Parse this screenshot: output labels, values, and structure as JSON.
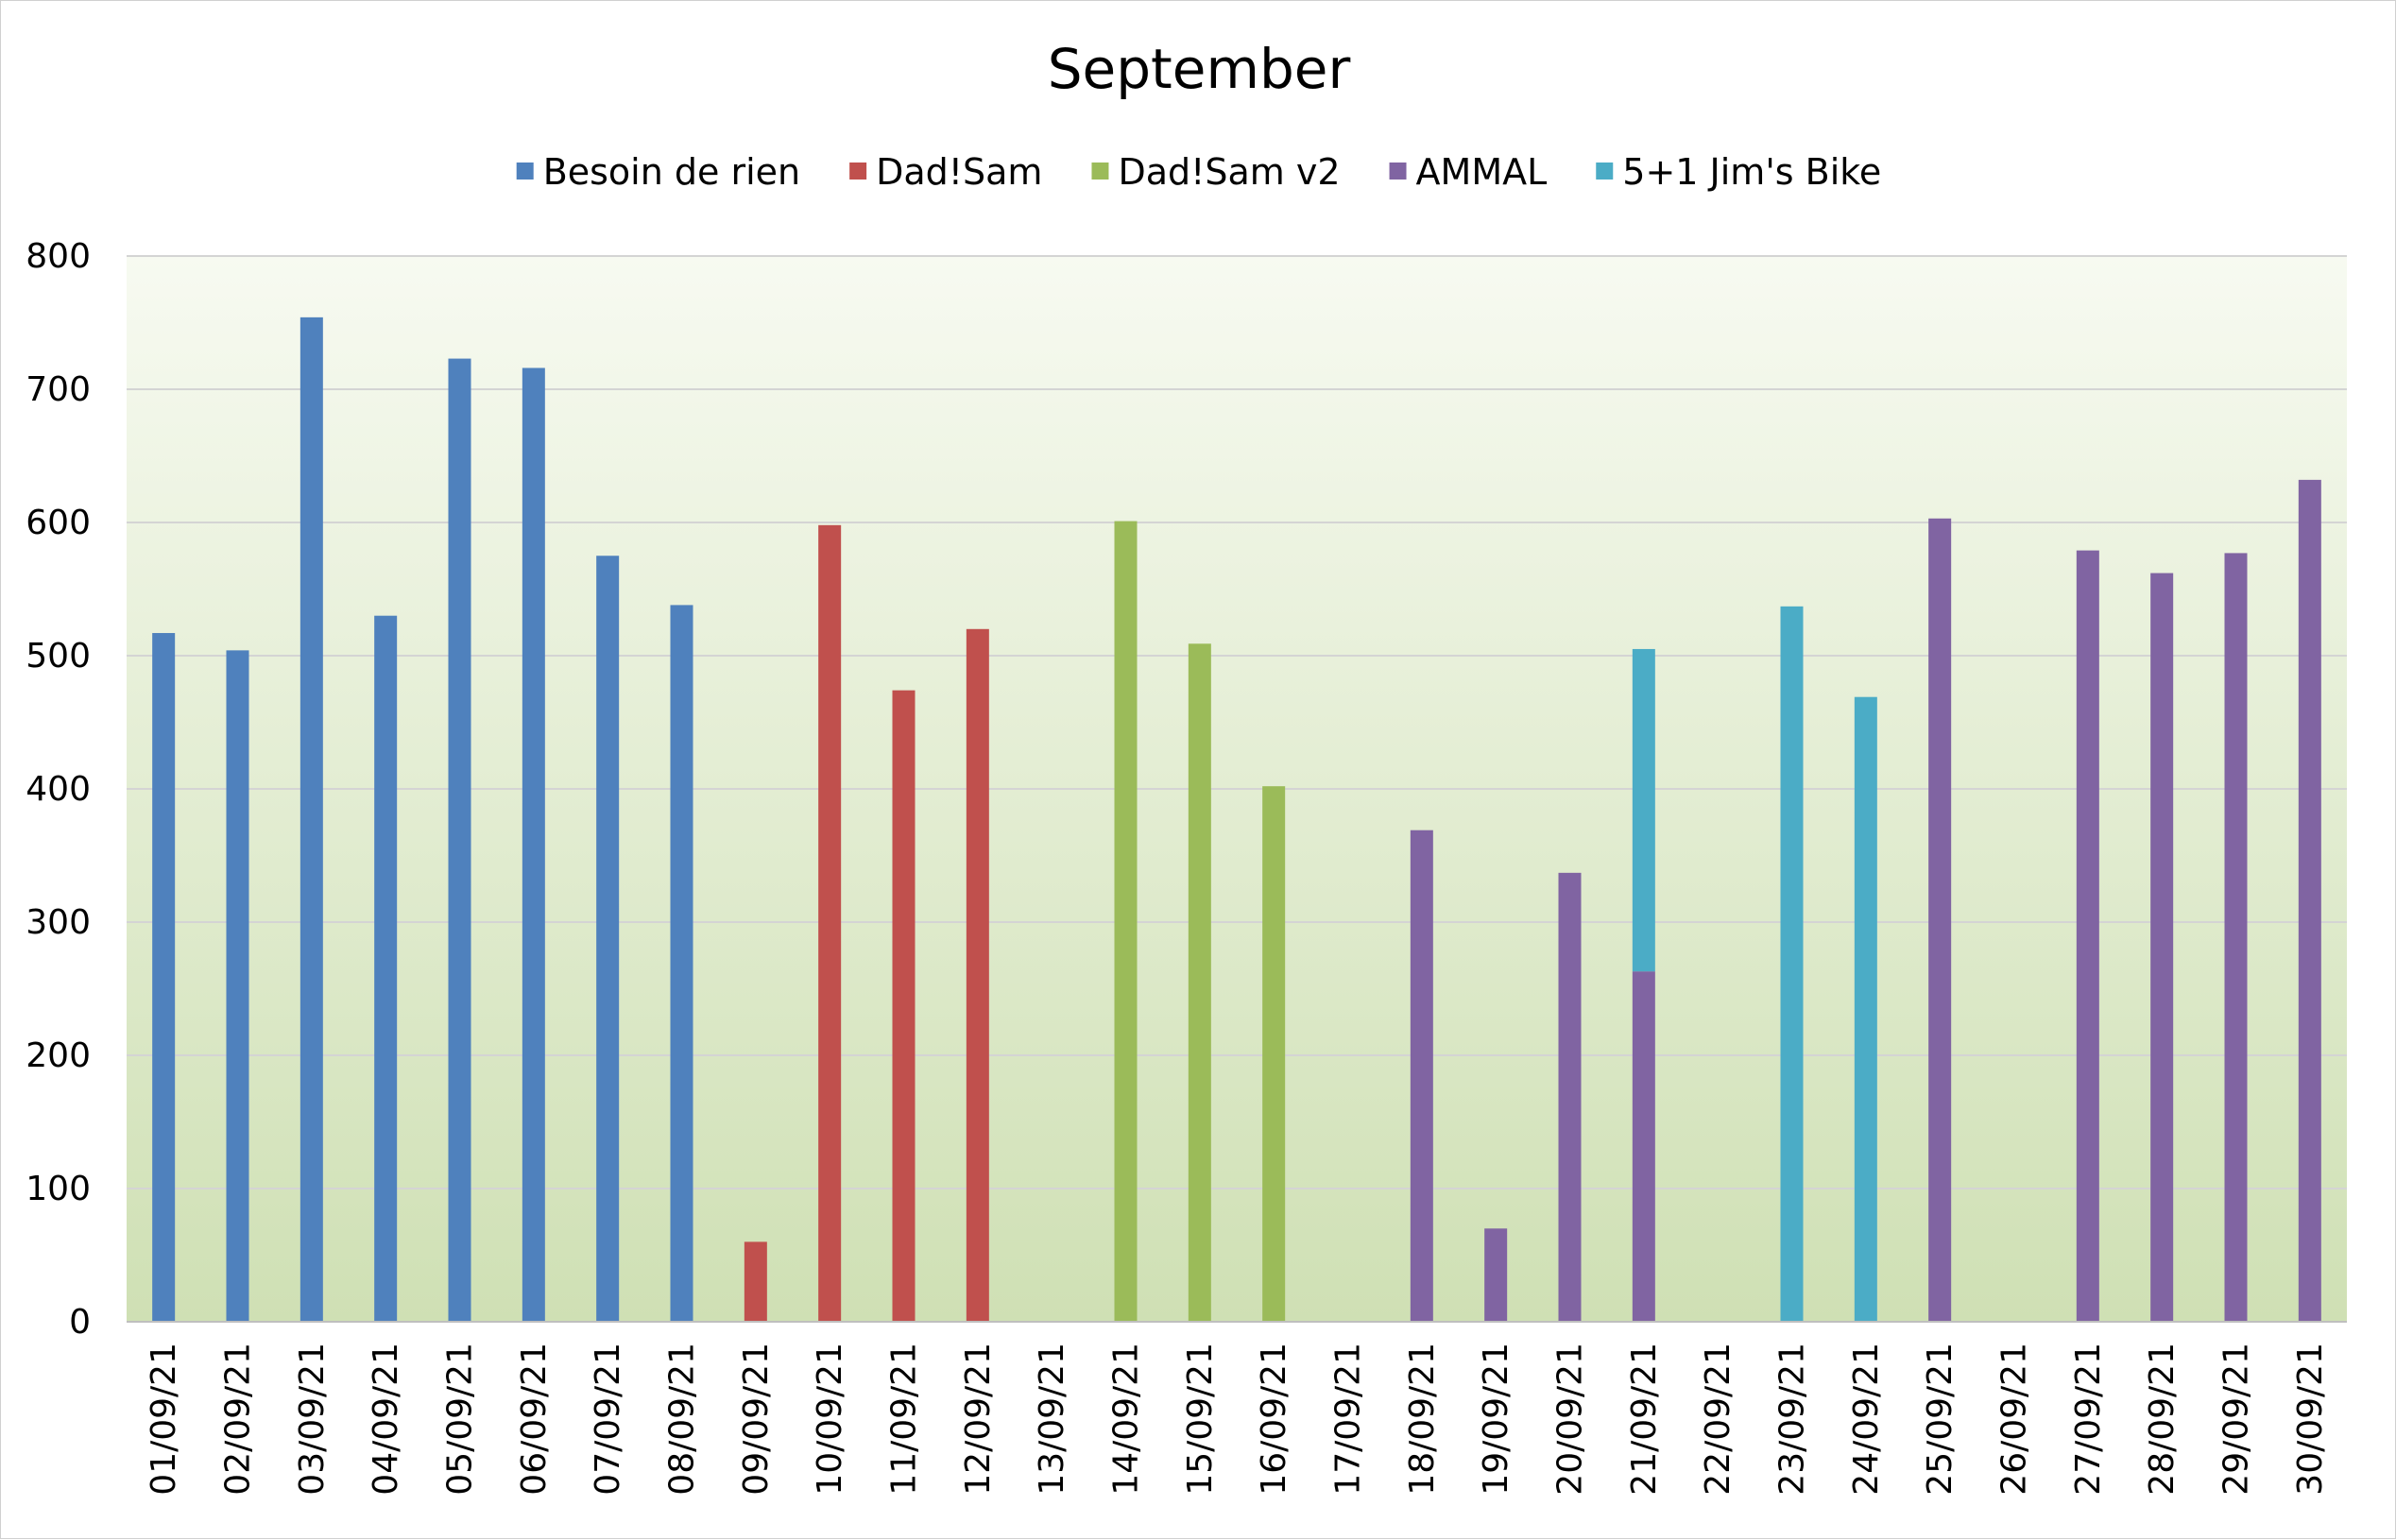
{
  "chart_data": {
    "type": "bar",
    "stacked": true,
    "title": "September",
    "xlabel": "",
    "ylabel": "",
    "ylim": [
      0,
      800
    ],
    "yticks": [
      0,
      100,
      200,
      300,
      400,
      500,
      600,
      700,
      800
    ],
    "grid": true,
    "legend_position": "top",
    "background": "gradient-green",
    "categories": [
      "01/09/21",
      "02/09/21",
      "03/09/21",
      "04/09/21",
      "05/09/21",
      "06/09/21",
      "07/09/21",
      "08/09/21",
      "09/09/21",
      "10/09/21",
      "11/09/21",
      "12/09/21",
      "13/09/21",
      "14/09/21",
      "15/09/21",
      "16/09/21",
      "17/09/21",
      "18/09/21",
      "19/09/21",
      "20/09/21",
      "21/09/21",
      "22/09/21",
      "23/09/21",
      "24/09/21",
      "25/09/21",
      "26/09/21",
      "27/09/21",
      "28/09/21",
      "29/09/21",
      "30/09/21"
    ],
    "series": [
      {
        "name": "Besoin de rien",
        "color": "#4F81BD",
        "values": [
          517,
          504,
          754,
          530,
          723,
          716,
          575,
          538,
          0,
          0,
          0,
          0,
          0,
          0,
          0,
          0,
          0,
          0,
          0,
          0,
          0,
          0,
          0,
          0,
          0,
          0,
          0,
          0,
          0,
          0
        ]
      },
      {
        "name": "Dad!Sam",
        "color": "#C0504D",
        "values": [
          0,
          0,
          0,
          0,
          0,
          0,
          0,
          0,
          60,
          598,
          474,
          520,
          0,
          0,
          0,
          0,
          0,
          0,
          0,
          0,
          0,
          0,
          0,
          0,
          0,
          0,
          0,
          0,
          0,
          0
        ]
      },
      {
        "name": "Dad!Sam v2",
        "color": "#9BBB59",
        "values": [
          0,
          0,
          0,
          0,
          0,
          0,
          0,
          0,
          0,
          0,
          0,
          0,
          0,
          601,
          509,
          402,
          0,
          0,
          0,
          0,
          0,
          0,
          0,
          0,
          0,
          0,
          0,
          0,
          0,
          0
        ]
      },
      {
        "name": "AMMAL",
        "color": "#8064A2",
        "values": [
          0,
          0,
          0,
          0,
          0,
          0,
          0,
          0,
          0,
          0,
          0,
          0,
          0,
          0,
          0,
          0,
          0,
          369,
          70,
          337,
          263,
          0,
          0,
          0,
          603,
          0,
          579,
          562,
          577,
          632
        ]
      },
      {
        "name": "5+1 Jim's Bike",
        "color": "#4BACC6",
        "values": [
          0,
          0,
          0,
          0,
          0,
          0,
          0,
          0,
          0,
          0,
          0,
          0,
          0,
          0,
          0,
          0,
          0,
          0,
          0,
          0,
          242,
          0,
          537,
          469,
          0,
          0,
          0,
          0,
          0,
          0
        ]
      }
    ]
  }
}
